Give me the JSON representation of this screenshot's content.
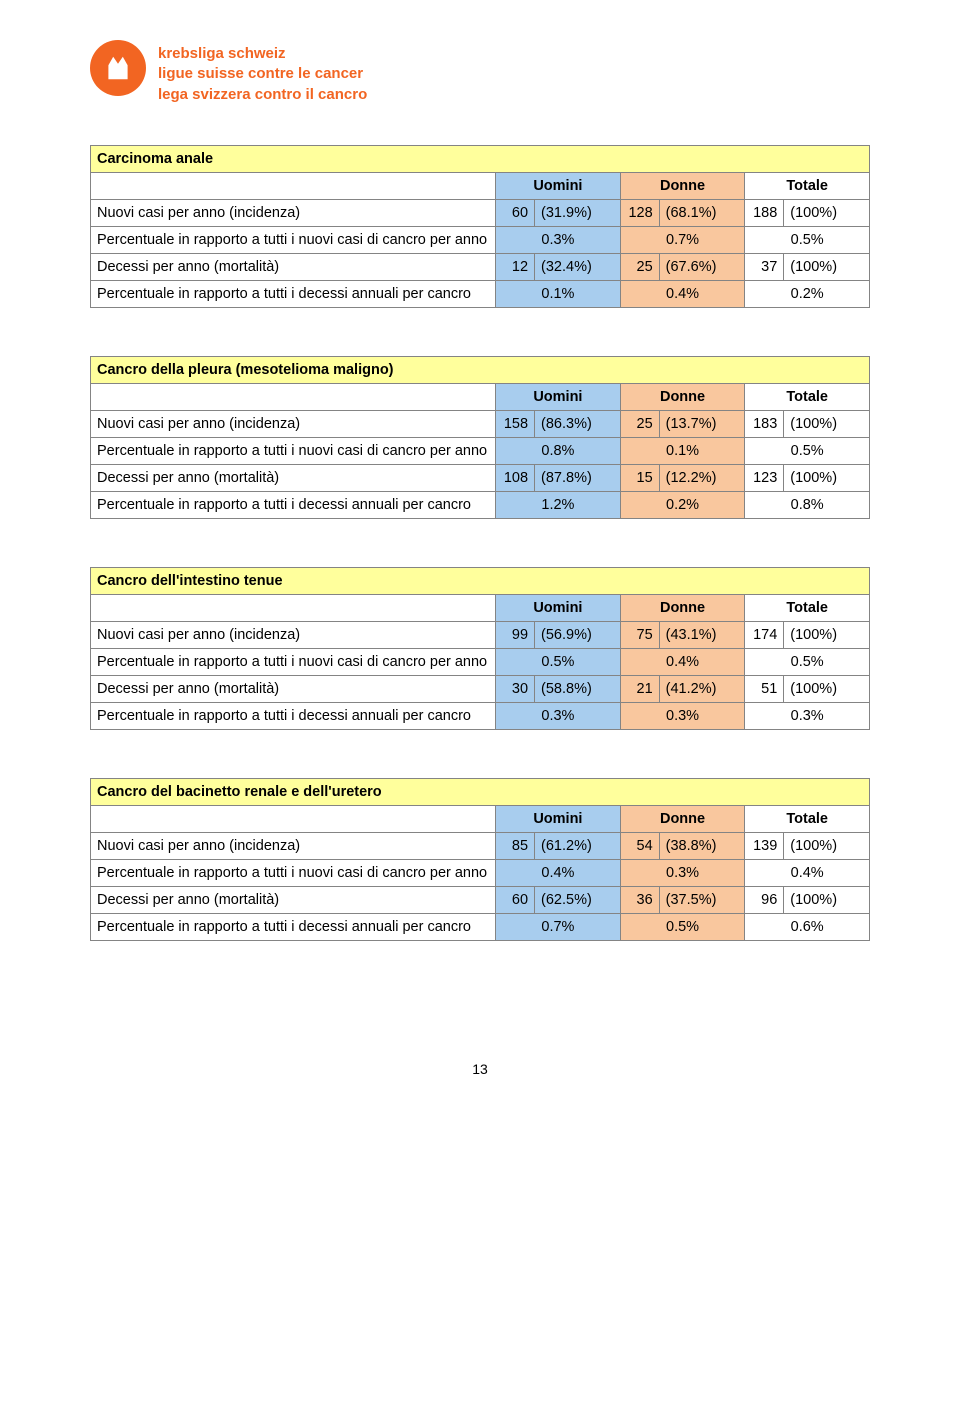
{
  "logo": {
    "line1": "krebsliga schweiz",
    "line2": "ligue suisse contre le cancer",
    "line3": "lega svizzera contro il cancro"
  },
  "headers": {
    "uomini": "Uomini",
    "donne": "Donne",
    "totale": "Totale"
  },
  "row_labels": {
    "incidenza": "Nuovi casi per anno (incidenza)",
    "perc_nuovi": "Percentuale in rapporto a tutti i nuovi casi di cancro per anno",
    "mortalita": "Decessi per anno (mortalità)",
    "perc_decessi": "Percentuale in rapporto a tutti i decessi annuali per cancro"
  },
  "tables": [
    {
      "title": "Carcinoma anale",
      "rows": {
        "incidenza": {
          "u_val": "60",
          "u_pct": "(31.9%)",
          "d_val": "128",
          "d_pct": "(68.1%)",
          "t_val": "188",
          "t_pct": "(100%)"
        },
        "perc_nuovi": {
          "u": "0.3%",
          "d": "0.7%",
          "t": "0.5%"
        },
        "mortalita": {
          "u_val": "12",
          "u_pct": "(32.4%)",
          "d_val": "25",
          "d_pct": "(67.6%)",
          "t_val": "37",
          "t_pct": "(100%)"
        },
        "perc_decessi": {
          "u": "0.1%",
          "d": "0.4%",
          "t": "0.2%"
        }
      }
    },
    {
      "title": "Cancro della pleura (mesotelioma maligno)",
      "rows": {
        "incidenza": {
          "u_val": "158",
          "u_pct": "(86.3%)",
          "d_val": "25",
          "d_pct": "(13.7%)",
          "t_val": "183",
          "t_pct": "(100%)"
        },
        "perc_nuovi": {
          "u": "0.8%",
          "d": "0.1%",
          "t": "0.5%"
        },
        "mortalita": {
          "u_val": "108",
          "u_pct": "(87.8%)",
          "d_val": "15",
          "d_pct": "(12.2%)",
          "t_val": "123",
          "t_pct": "(100%)"
        },
        "perc_decessi": {
          "u": "1.2%",
          "d": "0.2%",
          "t": "0.8%"
        }
      }
    },
    {
      "title": "Cancro dell'intestino tenue",
      "rows": {
        "incidenza": {
          "u_val": "99",
          "u_pct": "(56.9%)",
          "d_val": "75",
          "d_pct": "(43.1%)",
          "t_val": "174",
          "t_pct": "(100%)"
        },
        "perc_nuovi": {
          "u": "0.5%",
          "d": "0.4%",
          "t": "0.5%"
        },
        "mortalita": {
          "u_val": "30",
          "u_pct": "(58.8%)",
          "d_val": "21",
          "d_pct": "(41.2%)",
          "t_val": "51",
          "t_pct": "(100%)"
        },
        "perc_decessi": {
          "u": "0.3%",
          "d": "0.3%",
          "t": "0.3%"
        }
      }
    },
    {
      "title": "Cancro del bacinetto renale e dell'uretero",
      "rows": {
        "incidenza": {
          "u_val": "85",
          "u_pct": "(61.2%)",
          "d_val": "54",
          "d_pct": "(38.8%)",
          "t_val": "139",
          "t_pct": "(100%)"
        },
        "perc_nuovi": {
          "u": "0.4%",
          "d": "0.3%",
          "t": "0.4%"
        },
        "mortalita": {
          "u_val": "60",
          "u_pct": "(62.5%)",
          "d_val": "36",
          "d_pct": "(37.5%)",
          "t_val": "96",
          "t_pct": "(100%)"
        },
        "perc_decessi": {
          "u": "0.7%",
          "d": "0.5%",
          "t": "0.6%"
        }
      }
    }
  ],
  "page_number": "13",
  "colors": {
    "title_bg": "#ffff9c",
    "uomini_bg": "#a8cdee",
    "donne_bg": "#f9c79e",
    "totale_bg": "#ffffff",
    "border": "#848484",
    "brand": "#f26522"
  }
}
